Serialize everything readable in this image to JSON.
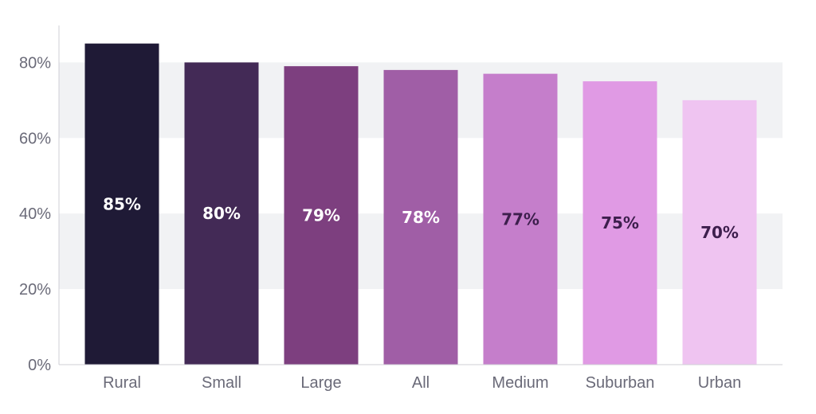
{
  "chart_data": {
    "type": "bar",
    "categories": [
      "Rural",
      "Small",
      "Large",
      "All",
      "Medium",
      "Suburban",
      "Urban"
    ],
    "values": [
      85,
      80,
      79,
      78,
      77,
      75,
      70
    ],
    "value_labels": [
      "85%",
      "80%",
      "79%",
      "78%",
      "77%",
      "75%",
      "70%"
    ],
    "bar_colors": [
      "#1f1a36",
      "#432a56",
      "#7d3f7f",
      "#a05ea6",
      "#c57ecb",
      "#e09ae4",
      "#efc4f1"
    ],
    "label_colors": [
      "#ffffff",
      "#ffffff",
      "#ffffff",
      "#ffffff",
      "#3d1f4d",
      "#3d1f4d",
      "#3d1f4d"
    ],
    "band_color": "#f1f2f4",
    "ylim": [
      0,
      90
    ],
    "yticks": [
      0,
      20,
      40,
      60,
      80
    ],
    "ytick_labels": [
      "0%",
      "20%",
      "40%",
      "60%",
      "80%"
    ],
    "grid": "alternating horizontal bands",
    "title": "",
    "xlabel": "",
    "ylabel": ""
  }
}
